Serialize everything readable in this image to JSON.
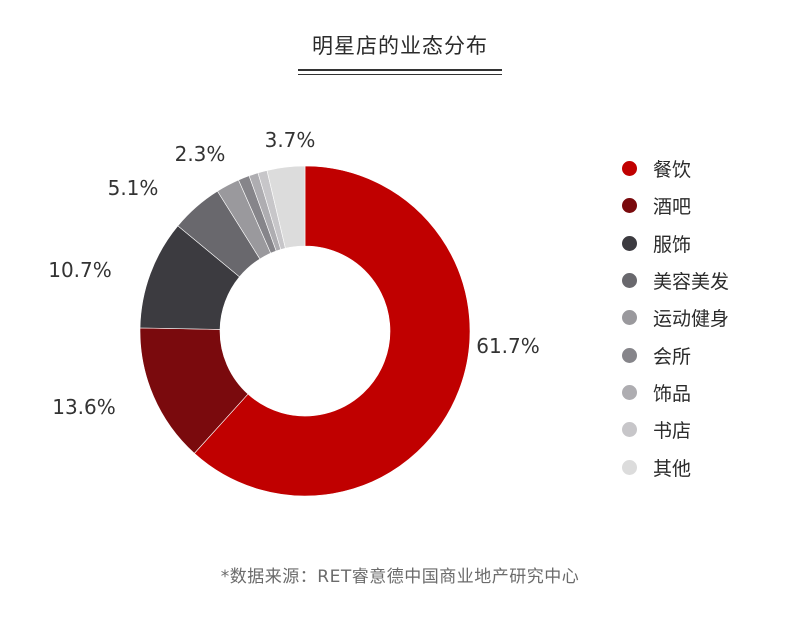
{
  "header": {
    "title": "明星店的业态分布"
  },
  "chart_data": {
    "type": "pie",
    "variant": "donut",
    "title": "明星店的业态分布",
    "legend_position": "right",
    "series": [
      {
        "name": "餐饮",
        "value": 61.7,
        "label": "61.7%",
        "color": "#c00000"
      },
      {
        "name": "酒吧",
        "value": 13.6,
        "label": "13.6%",
        "color": "#7a0a0d"
      },
      {
        "name": "服饰",
        "value": 10.7,
        "label": "10.7%",
        "color": "#3c3b40"
      },
      {
        "name": "美容美发",
        "value": 5.1,
        "label": "5.1%",
        "color": "#69686d"
      },
      {
        "name": "运动健身",
        "value": 2.3,
        "label": "2.3%",
        "color": "#9a999d"
      },
      {
        "name": "会所",
        "value": 1.1,
        "label": "",
        "color": "#86858a"
      },
      {
        "name": "饰品",
        "value": 0.9,
        "label": "",
        "color": "#aeadb1"
      },
      {
        "name": "书店",
        "value": 0.9,
        "label": "",
        "color": "#c7c6c9"
      },
      {
        "name": "其他",
        "value": 3.7,
        "label": "3.7%",
        "color": "#dcdcdc"
      }
    ]
  },
  "footer": {
    "source": "*数据来源：RET睿意德中国商业地产研究中心"
  }
}
